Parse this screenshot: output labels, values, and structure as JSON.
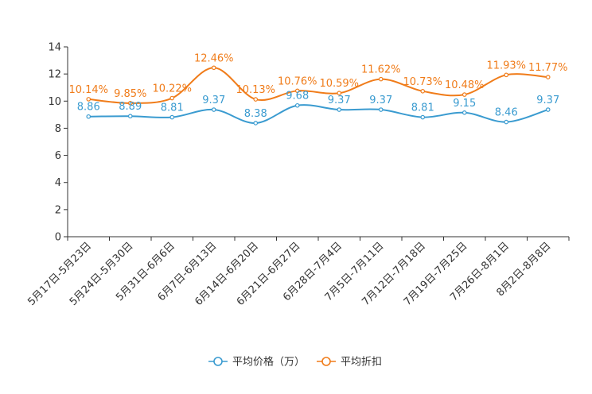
{
  "chart_data": {
    "type": "line",
    "title": "",
    "xlabel": "",
    "ylabel": "",
    "ylim": [
      0,
      14
    ],
    "yticks": [
      0,
      2,
      4,
      6,
      8,
      10,
      12,
      14
    ],
    "grid": false,
    "legend_position": "bottom-center",
    "categories": [
      "5月17日-5月23日",
      "5月24日-5月30日",
      "5月31日-6月6日",
      "6月7日-6月13日",
      "6月14日-6月20日",
      "6月21日-6月27日",
      "6月28日-7月4日",
      "7月5日-7月11日",
      "7月12日-7月18日",
      "7月19日-7月25日",
      "7月26日-8月1日",
      "8月2日-8月8日"
    ],
    "series": [
      {
        "name": "平均价格（万）",
        "color": "#3a9bd0",
        "values": [
          8.86,
          8.89,
          8.81,
          9.37,
          8.38,
          9.68,
          9.37,
          9.37,
          8.81,
          9.15,
          8.46,
          9.37
        ],
        "labels": [
          "8.86",
          "8.89",
          "8.81",
          "9.37",
          "8.38",
          "9.68",
          "9.37",
          "9.37",
          "8.81",
          "9.15",
          "8.46",
          "9.37"
        ]
      },
      {
        "name": "平均折扣",
        "color": "#f07c1a",
        "values": [
          10.14,
          9.85,
          10.22,
          12.46,
          10.13,
          10.76,
          10.59,
          11.62,
          10.73,
          10.48,
          11.93,
          11.77
        ],
        "labels": [
          "10.14%",
          "9.85%",
          "10.22%",
          "12.46%",
          "10.13%",
          "10.76%",
          "10.59%",
          "11.62%",
          "10.73%",
          "10.48%",
          "11.93%",
          "11.77%"
        ]
      }
    ]
  }
}
